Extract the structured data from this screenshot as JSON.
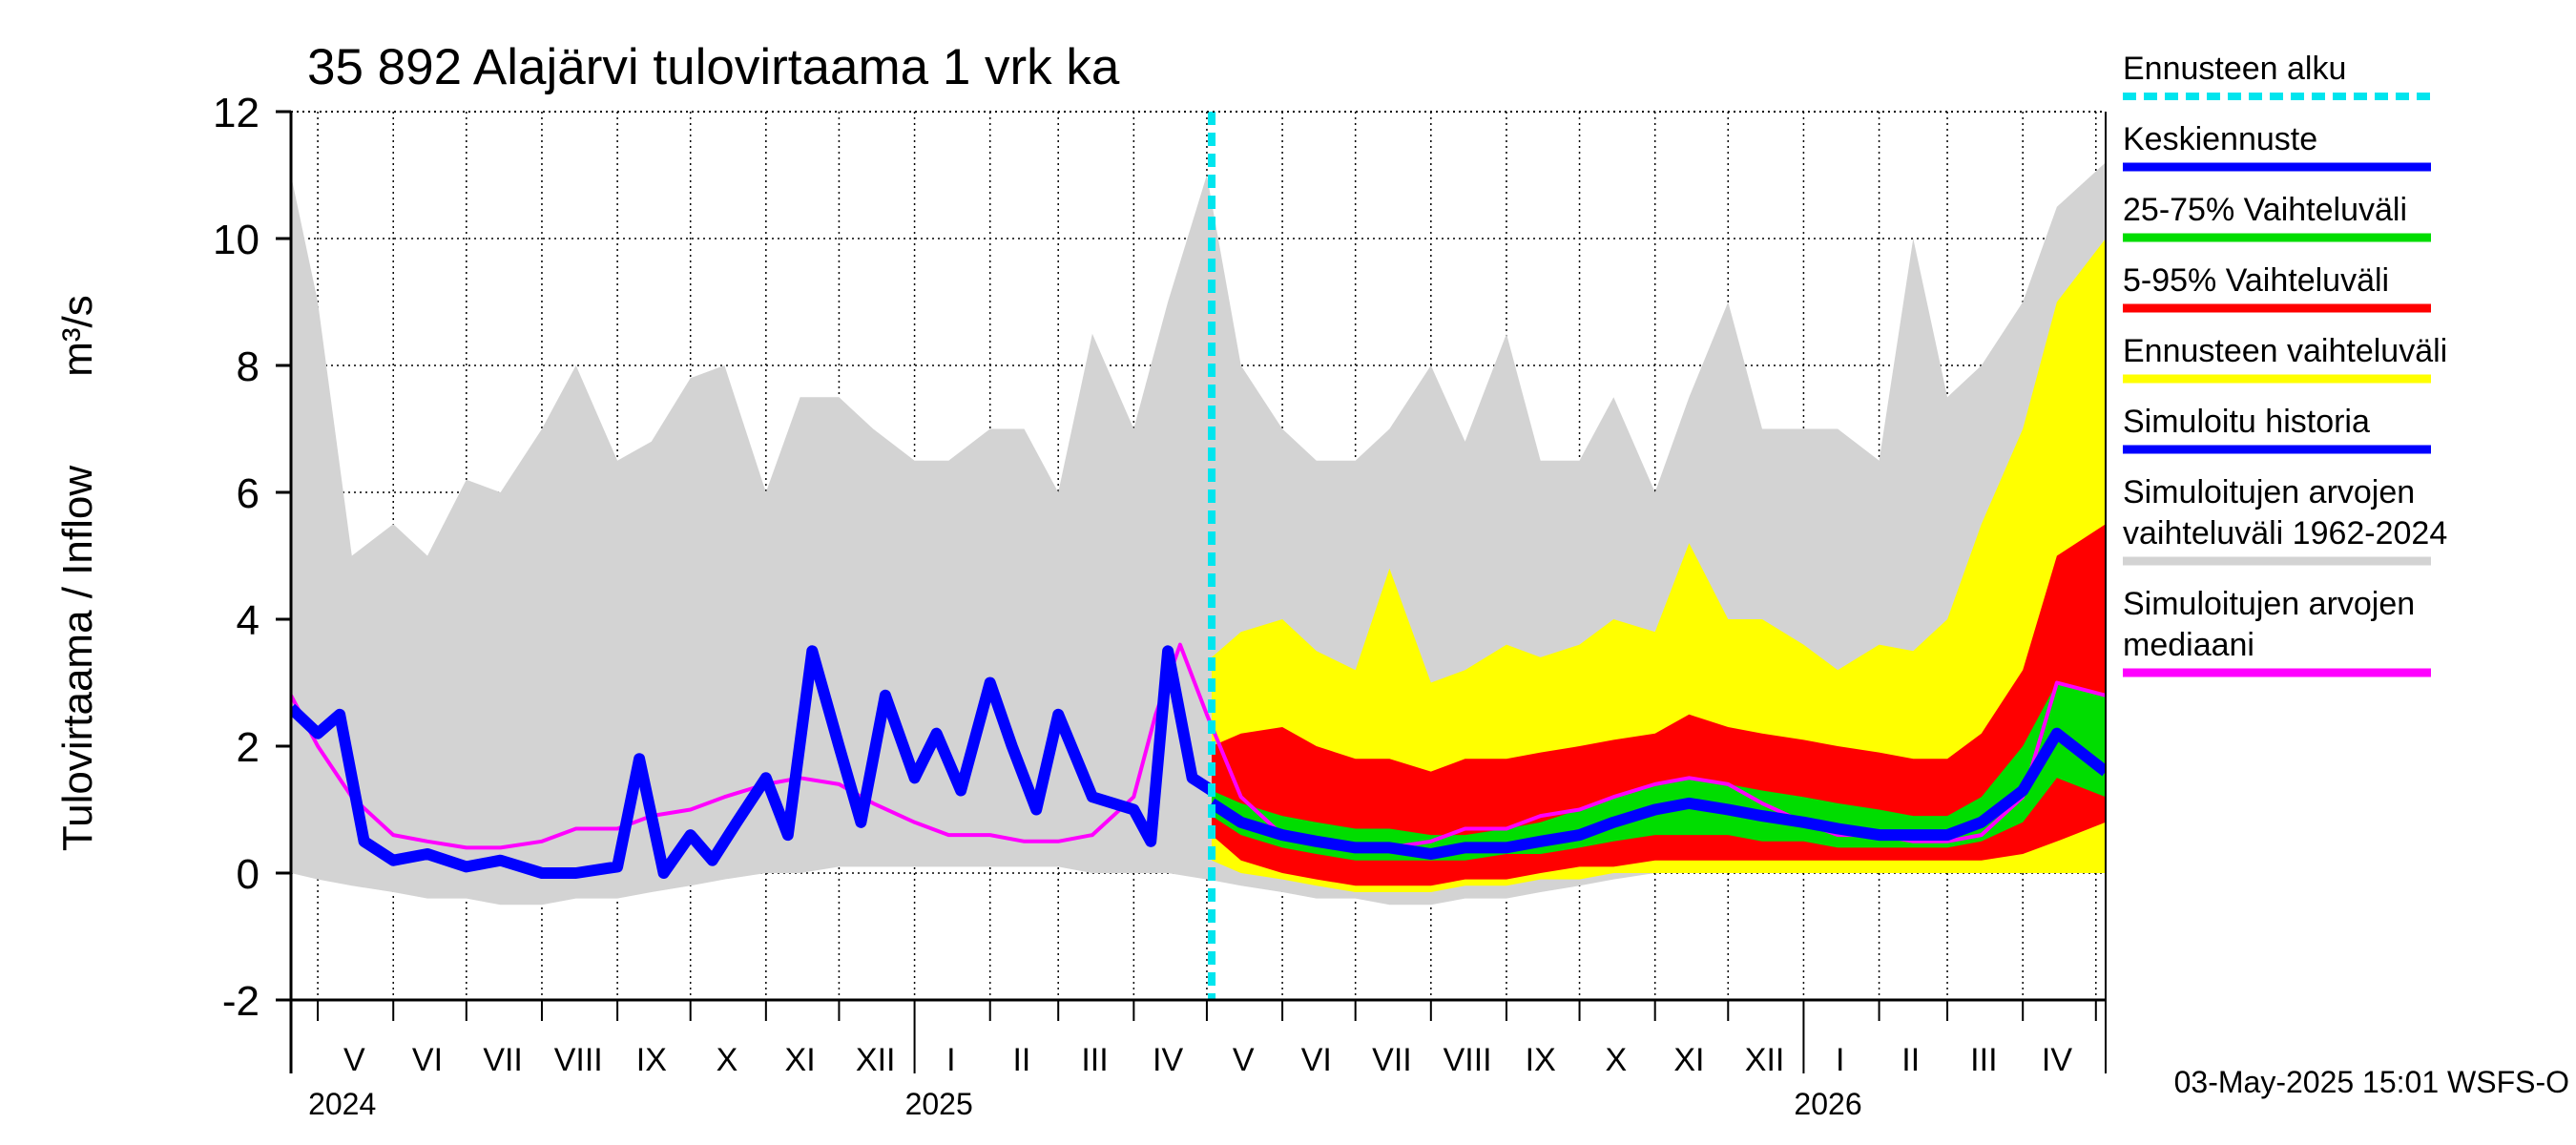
{
  "chart_data": {
    "type": "area",
    "title": "35 892 Alajärvi tulovirtaama 1 vrk ka",
    "ylabel_left": "Tulovirtaama / Inflow",
    "ylabel_unit": "m³/s",
    "ylim": [
      -2,
      12
    ],
    "yticks": [
      "-2",
      "0",
      "2",
      "4",
      "6",
      "8",
      "10",
      "12"
    ],
    "ytick_values": [
      -2,
      0,
      2,
      4,
      6,
      8,
      10,
      12
    ],
    "grid": true,
    "xlim": [
      "2024-04-20",
      "2026-05-05"
    ],
    "month_labels": [
      {
        "label": "V",
        "date": "2024-05-16"
      },
      {
        "label": "VI",
        "date": "2024-06-15"
      },
      {
        "label": "VII",
        "date": "2024-07-16"
      },
      {
        "label": "VIII",
        "date": "2024-08-16"
      },
      {
        "label": "IX",
        "date": "2024-09-15"
      },
      {
        "label": "X",
        "date": "2024-10-16"
      },
      {
        "label": "XI",
        "date": "2024-11-15"
      },
      {
        "label": "XII",
        "date": "2024-12-16"
      },
      {
        "label": "I",
        "date": "2025-01-16"
      },
      {
        "label": "II",
        "date": "2025-02-14"
      },
      {
        "label": "III",
        "date": "2025-03-16"
      },
      {
        "label": "IV",
        "date": "2025-04-15"
      },
      {
        "label": "V",
        "date": "2025-05-16"
      },
      {
        "label": "VI",
        "date": "2025-06-15"
      },
      {
        "label": "VII",
        "date": "2025-07-16"
      },
      {
        "label": "VIII",
        "date": "2025-08-16"
      },
      {
        "label": "IX",
        "date": "2025-09-15"
      },
      {
        "label": "X",
        "date": "2025-10-16"
      },
      {
        "label": "XI",
        "date": "2025-11-15"
      },
      {
        "label": "XII",
        "date": "2025-12-16"
      },
      {
        "label": "I",
        "date": "2026-01-16"
      },
      {
        "label": "II",
        "date": "2026-02-14"
      },
      {
        "label": "III",
        "date": "2026-03-16"
      },
      {
        "label": "IV",
        "date": "2026-04-15"
      }
    ],
    "year_labels": [
      {
        "label": "2024",
        "date": "2024-05-01"
      },
      {
        "label": "2025",
        "date": "2025-01-01"
      },
      {
        "label": "2026",
        "date": "2026-01-01"
      }
    ],
    "forecast_start": "2025-05-03",
    "legend_placement": "right",
    "legend": [
      {
        "label": "Ennusteen alku",
        "color": "#00e5ee",
        "style": "dashed"
      },
      {
        "label": "Keskiennuste",
        "color": "#0000ff",
        "style": "line"
      },
      {
        "label": "25-75% Vaihteluväli",
        "color": "#00dd00",
        "style": "line"
      },
      {
        "label": "5-95% Vaihteluväli",
        "color": "#ff0000",
        "style": "line"
      },
      {
        "label": "Ennusteen vaihteluväli",
        "color": "#ffff00",
        "style": "line"
      },
      {
        "label": "Simuloitu historia",
        "color": "#0000ff",
        "style": "line"
      },
      {
        "label": "Simuloitujen arvojen",
        "label2": "vaihteluväli 1962-2024",
        "color": "#d3d3d3",
        "style": "line"
      },
      {
        "label": "Simuloitujen arvojen",
        "label2": "mediaani",
        "color": "#ff00ff",
        "style": "line"
      }
    ],
    "series": [
      {
        "name": "Simuloitujen arvojen vaihteluväli 1962-2024",
        "kind": "band",
        "color": "#d3d3d3",
        "x": [
          "2024-04-20",
          "2024-05-01",
          "2024-05-15",
          "2024-06-01",
          "2024-06-15",
          "2024-07-01",
          "2024-07-15",
          "2024-08-01",
          "2024-08-15",
          "2024-09-01",
          "2024-09-15",
          "2024-10-01",
          "2024-10-15",
          "2024-11-01",
          "2024-11-15",
          "2024-12-01",
          "2024-12-15",
          "2025-01-01",
          "2025-01-15",
          "2025-02-01",
          "2025-02-15",
          "2025-03-01",
          "2025-03-15",
          "2025-04-01",
          "2025-04-15",
          "2025-05-01",
          "2025-05-15",
          "2025-06-01",
          "2025-06-15",
          "2025-07-01",
          "2025-07-15",
          "2025-08-01",
          "2025-08-15",
          "2025-09-01",
          "2025-09-15",
          "2025-10-01",
          "2025-10-15",
          "2025-11-01",
          "2025-11-15",
          "2025-12-01",
          "2025-12-15",
          "2026-01-01",
          "2026-01-15",
          "2026-02-01",
          "2026-02-15",
          "2026-03-01",
          "2026-03-15",
          "2026-04-01",
          "2026-04-15",
          "2026-05-05"
        ],
        "low": [
          0.0,
          -0.1,
          -0.2,
          -0.3,
          -0.4,
          -0.4,
          -0.5,
          -0.5,
          -0.4,
          -0.4,
          -0.3,
          -0.2,
          -0.1,
          0.0,
          0.0,
          0.1,
          0.1,
          0.1,
          0.1,
          0.1,
          0.1,
          0.1,
          0.0,
          0.0,
          0.0,
          -0.1,
          -0.2,
          -0.3,
          -0.4,
          -0.4,
          -0.5,
          -0.5,
          -0.4,
          -0.4,
          -0.3,
          -0.2,
          -0.1,
          0.0,
          0.0,
          0.1,
          0.1,
          0.1,
          0.1,
          0.1,
          0.1,
          0.1,
          0.0,
          0.0,
          0.0,
          0.0
        ],
        "high": [
          11.0,
          9.0,
          5.0,
          5.5,
          5.0,
          6.2,
          6.0,
          7.0,
          8.0,
          6.5,
          6.8,
          7.8,
          8.0,
          6.0,
          7.5,
          7.5,
          7.0,
          6.5,
          6.5,
          7.0,
          7.0,
          6.0,
          8.5,
          7.0,
          9.0,
          11.0,
          8.0,
          7.0,
          6.5,
          6.5,
          7.0,
          8.0,
          6.8,
          8.5,
          6.5,
          6.5,
          7.5,
          6.0,
          7.5,
          9.0,
          7.0,
          7.0,
          7.0,
          6.5,
          10.0,
          7.5,
          8.0,
          9.0,
          10.5,
          11.2
        ]
      },
      {
        "name": "Ennusteen vaihteluväli",
        "kind": "band",
        "color": "#ffff00",
        "x": [
          "2025-05-03",
          "2025-05-15",
          "2025-06-01",
          "2025-06-15",
          "2025-07-01",
          "2025-07-15",
          "2025-08-01",
          "2025-08-15",
          "2025-09-01",
          "2025-09-15",
          "2025-10-01",
          "2025-10-15",
          "2025-11-01",
          "2025-11-15",
          "2025-12-01",
          "2025-12-15",
          "2026-01-01",
          "2026-01-15",
          "2026-02-01",
          "2026-02-15",
          "2026-03-01",
          "2026-03-15",
          "2026-04-01",
          "2026-04-15",
          "2026-05-05"
        ],
        "low": [
          0.2,
          0.0,
          -0.1,
          -0.2,
          -0.3,
          -0.3,
          -0.3,
          -0.2,
          -0.2,
          -0.1,
          -0.1,
          0.0,
          0.0,
          0.0,
          0.0,
          0.0,
          0.0,
          0.0,
          0.0,
          0.0,
          0.0,
          0.0,
          0.0,
          0.0,
          0.0
        ],
        "high": [
          3.4,
          3.8,
          4.0,
          3.5,
          3.2,
          4.8,
          3.0,
          3.2,
          3.6,
          3.4,
          3.6,
          4.0,
          3.8,
          5.2,
          4.0,
          4.0,
          3.6,
          3.2,
          3.6,
          3.5,
          4.0,
          5.5,
          7.0,
          9.0,
          10.0
        ]
      },
      {
        "name": "5-95% Vaihteluväli",
        "kind": "band",
        "color": "#ff0000",
        "x": [
          "2025-05-03",
          "2025-05-15",
          "2025-06-01",
          "2025-06-15",
          "2025-07-01",
          "2025-07-15",
          "2025-08-01",
          "2025-08-15",
          "2025-09-01",
          "2025-09-15",
          "2025-10-01",
          "2025-10-15",
          "2025-11-01",
          "2025-11-15",
          "2025-12-01",
          "2025-12-15",
          "2026-01-01",
          "2026-01-15",
          "2026-02-01",
          "2026-02-15",
          "2026-03-01",
          "2026-03-15",
          "2026-04-01",
          "2026-04-15",
          "2026-05-05"
        ],
        "low": [
          0.6,
          0.2,
          0.0,
          -0.1,
          -0.2,
          -0.2,
          -0.2,
          -0.1,
          -0.1,
          0.0,
          0.1,
          0.1,
          0.2,
          0.2,
          0.2,
          0.2,
          0.2,
          0.2,
          0.2,
          0.2,
          0.2,
          0.2,
          0.3,
          0.5,
          0.8
        ],
        "high": [
          2.0,
          2.2,
          2.3,
          2.0,
          1.8,
          1.8,
          1.6,
          1.8,
          1.8,
          1.9,
          2.0,
          2.1,
          2.2,
          2.5,
          2.3,
          2.2,
          2.1,
          2.0,
          1.9,
          1.8,
          1.8,
          2.2,
          3.2,
          5.0,
          5.5
        ]
      },
      {
        "name": "25-75% Vaihteluväli",
        "kind": "band",
        "color": "#00dd00",
        "x": [
          "2025-05-03",
          "2025-05-15",
          "2025-06-01",
          "2025-06-15",
          "2025-07-01",
          "2025-07-15",
          "2025-08-01",
          "2025-08-15",
          "2025-09-01",
          "2025-09-15",
          "2025-10-01",
          "2025-10-15",
          "2025-11-01",
          "2025-11-15",
          "2025-12-01",
          "2025-12-15",
          "2026-01-01",
          "2026-01-15",
          "2026-02-01",
          "2026-02-15",
          "2026-03-01",
          "2026-03-15",
          "2026-04-01",
          "2026-04-15",
          "2026-05-05"
        ],
        "low": [
          0.9,
          0.6,
          0.4,
          0.3,
          0.2,
          0.2,
          0.2,
          0.2,
          0.3,
          0.3,
          0.4,
          0.5,
          0.6,
          0.6,
          0.6,
          0.5,
          0.5,
          0.4,
          0.4,
          0.4,
          0.4,
          0.5,
          0.8,
          1.5,
          1.2
        ],
        "high": [
          1.3,
          1.1,
          0.9,
          0.8,
          0.7,
          0.7,
          0.6,
          0.6,
          0.7,
          0.8,
          1.0,
          1.2,
          1.4,
          1.5,
          1.4,
          1.3,
          1.2,
          1.1,
          1.0,
          0.9,
          0.9,
          1.2,
          2.0,
          3.0,
          2.8
        ]
      },
      {
        "name": "Simuloitujen arvojen mediaani",
        "kind": "line",
        "color": "#ff00ff",
        "x": [
          "2024-04-20",
          "2024-05-01",
          "2024-05-15",
          "2024-06-01",
          "2024-06-15",
          "2024-07-01",
          "2024-07-15",
          "2024-08-01",
          "2024-08-15",
          "2024-09-01",
          "2024-09-15",
          "2024-10-01",
          "2024-10-15",
          "2024-11-01",
          "2024-11-15",
          "2024-12-01",
          "2024-12-15",
          "2025-01-01",
          "2025-01-15",
          "2025-02-01",
          "2025-02-15",
          "2025-03-01",
          "2025-03-15",
          "2025-04-01",
          "2025-04-10",
          "2025-04-20",
          "2025-05-01",
          "2025-05-15",
          "2025-06-01",
          "2025-06-15",
          "2025-07-01",
          "2025-07-15",
          "2025-08-01",
          "2025-08-15",
          "2025-09-01",
          "2025-09-15",
          "2025-10-01",
          "2025-10-15",
          "2025-11-01",
          "2025-11-15",
          "2025-12-01",
          "2025-12-15",
          "2026-01-01",
          "2026-01-15",
          "2026-02-01",
          "2026-02-15",
          "2026-03-01",
          "2026-03-15",
          "2026-04-01",
          "2026-04-15",
          "2026-05-05"
        ],
        "values": [
          2.8,
          2.0,
          1.2,
          0.6,
          0.5,
          0.4,
          0.4,
          0.5,
          0.7,
          0.7,
          0.9,
          1.0,
          1.2,
          1.4,
          1.5,
          1.4,
          1.1,
          0.8,
          0.6,
          0.6,
          0.5,
          0.5,
          0.6,
          1.2,
          2.5,
          3.6,
          2.5,
          1.2,
          0.6,
          0.5,
          0.4,
          0.4,
          0.5,
          0.7,
          0.7,
          0.9,
          1.0,
          1.2,
          1.4,
          1.5,
          1.4,
          1.1,
          0.8,
          0.6,
          0.6,
          0.5,
          0.5,
          0.6,
          1.2,
          3.0,
          2.8
        ]
      },
      {
        "name": "Simuloitu historia",
        "kind": "line",
        "color": "#0000ff",
        "x": [
          "2024-04-20",
          "2024-05-01",
          "2024-05-10",
          "2024-05-20",
          "2024-06-01",
          "2024-06-15",
          "2024-07-01",
          "2024-07-15",
          "2024-08-01",
          "2024-08-15",
          "2024-09-01",
          "2024-09-10",
          "2024-09-20",
          "2024-10-01",
          "2024-10-10",
          "2024-10-20",
          "2024-11-01",
          "2024-11-10",
          "2024-11-20",
          "2024-12-01",
          "2024-12-10",
          "2024-12-20",
          "2025-01-01",
          "2025-01-10",
          "2025-01-20",
          "2025-02-01",
          "2025-02-10",
          "2025-02-20",
          "2025-03-01",
          "2025-03-15",
          "2025-04-01",
          "2025-04-08",
          "2025-04-15",
          "2025-04-25",
          "2025-05-03"
        ],
        "values": [
          2.6,
          2.2,
          2.5,
          0.5,
          0.2,
          0.3,
          0.1,
          0.2,
          0.0,
          0.0,
          0.1,
          1.8,
          0.0,
          0.6,
          0.2,
          0.8,
          1.5,
          0.6,
          3.5,
          2.0,
          0.8,
          2.8,
          1.5,
          2.2,
          1.3,
          3.0,
          2.0,
          1.0,
          2.5,
          1.2,
          1.0,
          0.5,
          3.5,
          1.5,
          1.3
        ]
      },
      {
        "name": "Keskiennuste",
        "kind": "line",
        "color": "#0000ff",
        "x": [
          "2025-05-03",
          "2025-05-15",
          "2025-06-01",
          "2025-06-15",
          "2025-07-01",
          "2025-07-15",
          "2025-08-01",
          "2025-08-15",
          "2025-09-01",
          "2025-09-15",
          "2025-10-01",
          "2025-10-15",
          "2025-11-01",
          "2025-11-15",
          "2025-12-01",
          "2025-12-15",
          "2026-01-01",
          "2026-01-15",
          "2026-02-01",
          "2026-02-15",
          "2026-03-01",
          "2026-03-15",
          "2026-04-01",
          "2026-04-15",
          "2026-05-05"
        ],
        "values": [
          1.1,
          0.8,
          0.6,
          0.5,
          0.4,
          0.4,
          0.3,
          0.4,
          0.4,
          0.5,
          0.6,
          0.8,
          1.0,
          1.1,
          1.0,
          0.9,
          0.8,
          0.7,
          0.6,
          0.6,
          0.6,
          0.8,
          1.3,
          2.2,
          1.6
        ]
      }
    ]
  },
  "footer": {
    "timestamp": "03-May-2025 15:01 WSFS-O"
  }
}
